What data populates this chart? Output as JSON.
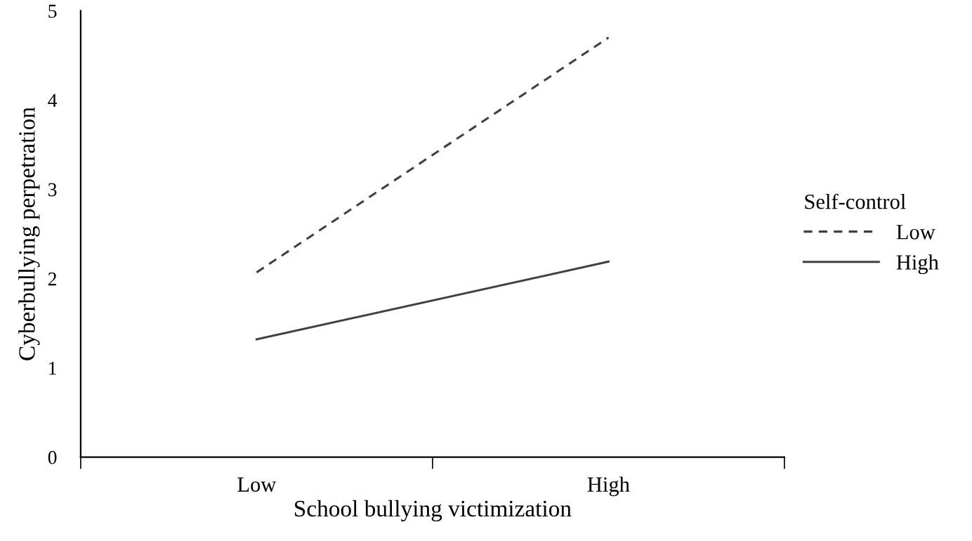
{
  "chart_data": {
    "type": "line",
    "xlabel": "School bullying victimization",
    "ylabel": "Cyberbullying perpetration",
    "legend_title": "Self-control",
    "categories": [
      "Low",
      "High"
    ],
    "series": [
      {
        "name": "Low",
        "color": "#404040",
        "values": [
          2.07,
          4.7
        ],
        "line_style": "dashed"
      },
      {
        "name": "High",
        "color": "#404040",
        "values": [
          1.32,
          2.19
        ],
        "line_style": "solid"
      }
    ],
    "ylim": [
      0,
      5
    ],
    "yticks": [
      0,
      1,
      2,
      3,
      4,
      5
    ],
    "grid": false,
    "legend": "right",
    "marker": "none"
  }
}
